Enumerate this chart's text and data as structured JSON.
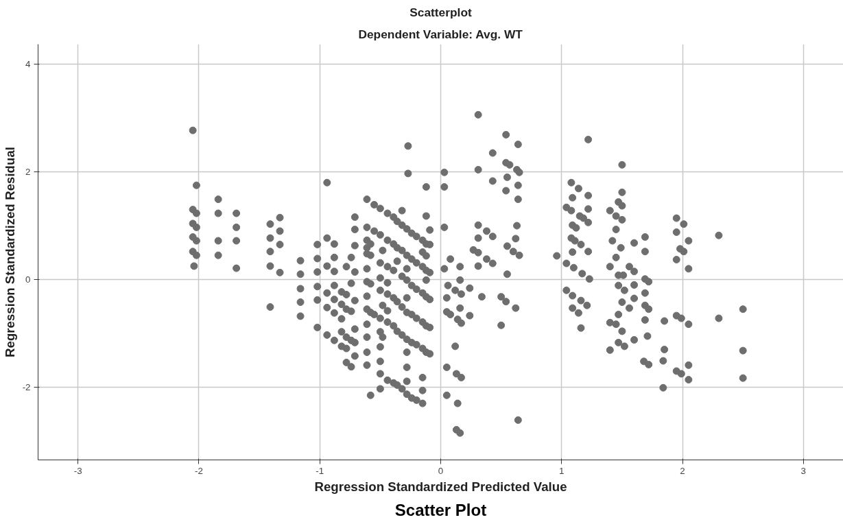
{
  "chart_data": {
    "type": "scatter",
    "title": "Scatterplot",
    "subtitle": "Dependent Variable: Avg. WT",
    "xlabel": "Regression Standardized Predicted Value",
    "ylabel": "Regression Standardized Residual",
    "annotations": [
      "Scatter Plot"
    ],
    "xlim": [
      -3.33,
      3.33
    ],
    "ylim": [
      -3.35,
      4.37
    ],
    "xticks": [
      -3,
      -2,
      -1,
      0,
      1,
      2,
      3
    ],
    "yticks": [
      -2,
      0,
      2,
      4
    ],
    "grid": true,
    "marker": "circle",
    "series": [
      {
        "color": "#6e6e6e",
        "x": [
          -2.05,
          -2.02,
          -2.05,
          -2.02,
          -2.05,
          -2.02,
          -2.05,
          -2.02,
          -2.05,
          -2.02,
          -2.04,
          -1.84,
          -1.84,
          -1.84,
          -1.84,
          -1.69,
          -1.69,
          -1.69,
          -1.69,
          -1.41,
          -1.41,
          -1.41,
          -1.41,
          -1.41,
          -1.33,
          -1.33,
          -1.33,
          -1.33,
          -1.16,
          -1.16,
          -1.16,
          -1.16,
          -1.16,
          -1.02,
          -1.02,
          -1.02,
          -1.02,
          -1.02,
          -1.02,
          -0.94,
          -0.94,
          -0.94,
          -0.94,
          -0.94,
          -0.94,
          -0.88,
          -0.88,
          -0.88,
          -0.88,
          -0.88,
          -0.88,
          -0.88,
          -0.82,
          -0.82,
          -0.82,
          -0.82,
          -0.82,
          -0.78,
          -0.78,
          -0.78,
          -0.78,
          -0.78,
          -0.78,
          -0.74,
          -0.74,
          -0.74,
          -0.74,
          -0.74,
          -0.71,
          -0.71,
          -0.71,
          -0.71,
          -0.71,
          -0.71,
          -0.71,
          -0.71,
          -0.61,
          -0.61,
          -0.61,
          -0.61,
          -0.61,
          -0.61,
          -0.61,
          -0.61,
          -0.61,
          -0.61,
          -0.61,
          -0.61,
          -0.61,
          -0.58,
          -0.58,
          -0.58,
          -0.58,
          -0.58,
          -0.55,
          -0.55,
          -0.55,
          -0.5,
          -0.5,
          -0.5,
          -0.5,
          -0.5,
          -0.5,
          -0.5,
          -0.5,
          -0.5,
          -0.5,
          -0.5,
          -0.48,
          -0.48,
          -0.48,
          -0.44,
          -0.44,
          -0.44,
          -0.44,
          -0.44,
          -0.44,
          -0.44,
          -0.44,
          -0.39,
          -0.39,
          -0.39,
          -0.39,
          -0.39,
          -0.39,
          -0.36,
          -0.36,
          -0.36,
          -0.36,
          -0.36,
          -0.36,
          -0.32,
          -0.32,
          -0.32,
          -0.32,
          -0.32,
          -0.32,
          -0.32,
          -0.28,
          -0.28,
          -0.28,
          -0.28,
          -0.28,
          -0.28,
          -0.28,
          -0.28,
          -0.28,
          -0.28,
          -0.28,
          -0.24,
          -0.24,
          -0.24,
          -0.24,
          -0.24,
          -0.24,
          -0.2,
          -0.2,
          -0.2,
          -0.2,
          -0.2,
          -0.2,
          -0.15,
          -0.15,
          -0.15,
          -0.15,
          -0.15,
          -0.15,
          -0.15,
          -0.15,
          -0.15,
          -0.12,
          -0.12,
          -0.12,
          -0.12,
          -0.12,
          -0.12,
          -0.12,
          -0.12,
          -0.12,
          -0.09,
          -0.09,
          -0.09,
          -0.09,
          -0.09,
          -0.09,
          -0.27,
          -0.27,
          0.03,
          0.03,
          0.03,
          0.03,
          0.05,
          0.05,
          0.05,
          0.05,
          0.06,
          0.08,
          0.08,
          0.12,
          0.12,
          0.13,
          0.13,
          0.14,
          0.14,
          0.16,
          0.16,
          0.16,
          0.16,
          0.17,
          0.17,
          0.17,
          0.24,
          0.24,
          0.34,
          0.31,
          0.31,
          0.31,
          0.31,
          0.27,
          0.31,
          0.31,
          0.38,
          0.43,
          0.38,
          0.43,
          0.43,
          0.43,
          0.5,
          0.54,
          0.62,
          0.5,
          0.54,
          0.54,
          0.57,
          0.55,
          0.54,
          0.55,
          0.55,
          0.6,
          0.64,
          0.63,
          0.65,
          0.64,
          0.64,
          0.63,
          0.62,
          0.65,
          0.64,
          0.96,
          1.08,
          1.14,
          1.22,
          1.09,
          1.22,
          1.04,
          1.08,
          1.15,
          1.18,
          1.22,
          1.09,
          1.12,
          1.08,
          1.11,
          1.16,
          1.22,
          1.09,
          1.04,
          1.1,
          1.17,
          1.23,
          1.04,
          1.09,
          1.16,
          1.21,
          1.09,
          1.14,
          1.16,
          1.22,
          1.5,
          1.5,
          1.47,
          1.5,
          1.4,
          1.45,
          1.5,
          1.45,
          1.42,
          1.49,
          1.45,
          1.4,
          1.47,
          1.51,
          1.47,
          1.52,
          1.5,
          1.47,
          1.4,
          1.45,
          1.5,
          1.47,
          1.52,
          1.4,
          1.6,
          1.69,
          1.69,
          1.56,
          1.6,
          1.6,
          1.69,
          1.72,
          1.6,
          1.56,
          1.69,
          1.69,
          1.72,
          1.69,
          1.71,
          1.6,
          1.68,
          1.72,
          1.95,
          2.01,
          1.95,
          2.05,
          1.98,
          2.01,
          1.95,
          2.05,
          1.85,
          1.95,
          1.99,
          2.05,
          1.85,
          1.84,
          1.95,
          1.99,
          2.05,
          2.05,
          1.84,
          2.3,
          2.3,
          2.5,
          2.5,
          2.5
        ],
        "values": [
          2.77,
          1.75,
          1.3,
          1.23,
          1.04,
          0.97,
          0.79,
          0.72,
          0.52,
          0.45,
          0.25,
          1.49,
          1.23,
          0.72,
          0.45,
          1.23,
          0.97,
          0.72,
          0.21,
          1.03,
          0.77,
          0.52,
          0.25,
          -0.51,
          1.15,
          0.9,
          0.65,
          0.13,
          0.35,
          0.1,
          -0.17,
          -0.42,
          -0.68,
          0.65,
          0.39,
          0.14,
          -0.13,
          -0.38,
          -0.89,
          1.8,
          0.77,
          0.25,
          -0.25,
          -0.52,
          -1.03,
          0.66,
          0.41,
          0.15,
          -0.11,
          -0.37,
          -0.62,
          -1.13,
          -0.23,
          -0.46,
          -0.73,
          -0.97,
          -1.24,
          0.24,
          -0.28,
          -0.55,
          -1.07,
          -1.28,
          -1.54,
          -0.59,
          -1.13,
          -1.62,
          -0.07,
          0.41,
          1.16,
          0.93,
          0.63,
          0.14,
          -0.39,
          -0.92,
          -1.17,
          -1.42,
          1.49,
          0.97,
          0.73,
          0.59,
          0.48,
          0.2,
          -0.04,
          -0.31,
          -0.55,
          -0.83,
          -1.07,
          -1.35,
          -1.59,
          0.66,
          0.45,
          -0.08,
          -0.61,
          -2.15,
          1.39,
          0.9,
          -0.65,
          1.32,
          0.83,
          0.31,
          0.03,
          -0.2,
          -0.72,
          -0.97,
          -1.25,
          -1.52,
          -1.75,
          -2.03,
          0.54,
          -0.48,
          -1.07,
          1.23,
          0.73,
          0.24,
          -0.06,
          -0.27,
          -0.79,
          -1.87,
          -0.58,
          1.16,
          0.66,
          0.17,
          -0.34,
          -0.86,
          -1.92,
          0.34,
          1.08,
          0.59,
          -0.41,
          -0.96,
          -1.96,
          1.28,
          1.01,
          0.54,
          0.06,
          -0.51,
          -1.03,
          -2.03,
          0.94,
          0.45,
          0.2,
          -0.01,
          -0.34,
          -0.61,
          -1.11,
          -1.35,
          -1.63,
          -1.89,
          -2.13,
          0.86,
          0.38,
          -0.11,
          -0.65,
          -1.17,
          -2.2,
          0.8,
          0.31,
          -0.18,
          -0.72,
          -1.21,
          -2.24,
          0.73,
          0.51,
          0.24,
          -0.25,
          -0.79,
          -1.28,
          -1.82,
          -2.06,
          -2.3,
          1.72,
          1.18,
          0.66,
          0.44,
          0.17,
          -0.32,
          -0.86,
          -1.35,
          -0.01,
          0.92,
          0.65,
          0.13,
          -0.37,
          -0.89,
          -1.38,
          2.48,
          1.97,
          1.99,
          1.72,
          0.97,
          0.2,
          -0.34,
          -0.6,
          -1.63,
          -2.15,
          -0.11,
          0.38,
          -0.65,
          -0.2,
          -1.24,
          -1.75,
          -2.79,
          -0.74,
          -2.3,
          0.24,
          -0.01,
          -0.53,
          -2.85,
          -0.27,
          -0.81,
          -1.82,
          -0.16,
          -0.67,
          -0.32,
          3.06,
          2.04,
          1.01,
          0.77,
          0.55,
          0.5,
          0.25,
          0.9,
          0.8,
          0.38,
          0.3,
          2.35,
          1.83,
          -0.32,
          -0.41,
          -0.53,
          -0.85,
          2.69,
          2.17,
          2.13,
          1.9,
          1.65,
          0.62,
          0.1,
          0.52,
          2.51,
          2.04,
          1.99,
          1.75,
          1.49,
          1.0,
          0.76,
          0.45,
          -2.61,
          0.44,
          1.8,
          1.69,
          1.56,
          1.52,
          1.31,
          1.34,
          1.28,
          1.18,
          1.14,
          1.06,
          1.01,
          0.96,
          0.77,
          0.72,
          0.65,
          0.52,
          0.51,
          0.3,
          0.22,
          0.11,
          0.01,
          -0.2,
          -0.3,
          -0.39,
          -0.48,
          -0.53,
          -0.62,
          -0.9,
          2.6,
          2.13,
          1.62,
          1.44,
          1.37,
          1.28,
          1.18,
          1.11,
          0.93,
          0.72,
          0.59,
          0.41,
          0.24,
          0.08,
          0.08,
          -0.11,
          -0.2,
          -0.42,
          -0.65,
          -0.8,
          -0.83,
          -0.96,
          -1.17,
          -1.24,
          -1.31,
          0.68,
          0.79,
          0.52,
          0.24,
          0.15,
          -0.1,
          0.01,
          -0.04,
          -0.35,
          -0.53,
          -0.25,
          -0.48,
          -0.55,
          -0.75,
          -1.05,
          -1.12,
          -1.52,
          -1.58,
          1.14,
          1.03,
          0.88,
          0.72,
          0.57,
          0.52,
          0.37,
          0.2,
          -0.77,
          -0.67,
          -0.72,
          -0.83,
          -1.3,
          -1.51,
          -1.7,
          -1.75,
          -1.59,
          -1.86,
          -2.01,
          0.82,
          -0.72,
          -0.55,
          -1.32,
          -1.83
        ]
      }
    ]
  }
}
